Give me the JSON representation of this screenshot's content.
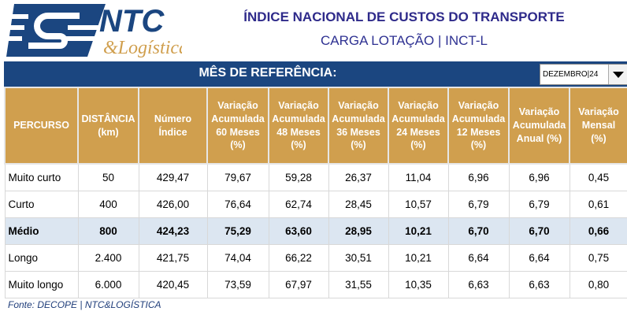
{
  "header": {
    "logo_text": "NTC & Logística",
    "title": "ÍNDICE NACIONAL DE CUSTOS DO TRANSPORTE",
    "subtitle": "CARGA LOTAÇÃO  |  INCT-L"
  },
  "reference": {
    "label": "MÊS DE REFERÊNCIA:",
    "selected": "DEZEMBRO|24"
  },
  "table": {
    "headers": [
      [
        "PERCURSO"
      ],
      [
        "DISTÂNCIA",
        "(km)"
      ],
      [
        "Número",
        "Índice"
      ],
      [
        "Variação",
        "Acumulada",
        "60 Meses",
        "(%)"
      ],
      [
        "Variação",
        "Acumulada",
        "48 Meses",
        "(%)"
      ],
      [
        "Variação",
        "Acumulada",
        "36 Meses",
        "(%)"
      ],
      [
        "Variação",
        "Acumulada",
        "24 Meses",
        "(%)"
      ],
      [
        "Variação",
        "Acumulada",
        "12 Meses",
        "(%)"
      ],
      [
        "Variação",
        "Acumulada",
        "Anual  (%)"
      ],
      [
        "Variação",
        "Mensal",
        "(%)"
      ]
    ],
    "rows": [
      [
        "Muito curto",
        "50",
        "429,47",
        "79,67",
        "59,28",
        "26,37",
        "11,04",
        "6,96",
        "6,96",
        "0,45"
      ],
      [
        "Curto",
        "400",
        "426,00",
        "76,64",
        "62,74",
        "28,45",
        "10,57",
        "6,79",
        "6,79",
        "0,61"
      ],
      [
        "Médio",
        "800",
        "424,23",
        "75,29",
        "63,60",
        "28,95",
        "10,21",
        "6,70",
        "6,70",
        "0,66"
      ],
      [
        "Longo",
        "2.400",
        "421,75",
        "74,04",
        "66,22",
        "30,51",
        "10,21",
        "6,64",
        "6,64",
        "0,75"
      ],
      [
        "Muito longo",
        "6.000",
        "420,45",
        "73,59",
        "67,97",
        "31,55",
        "10,35",
        "6,63",
        "6,63",
        "0,80"
      ]
    ],
    "highlight_row": 2
  },
  "footer": "Fonte: DECOPE | NTC&LOGÍSTICA"
}
